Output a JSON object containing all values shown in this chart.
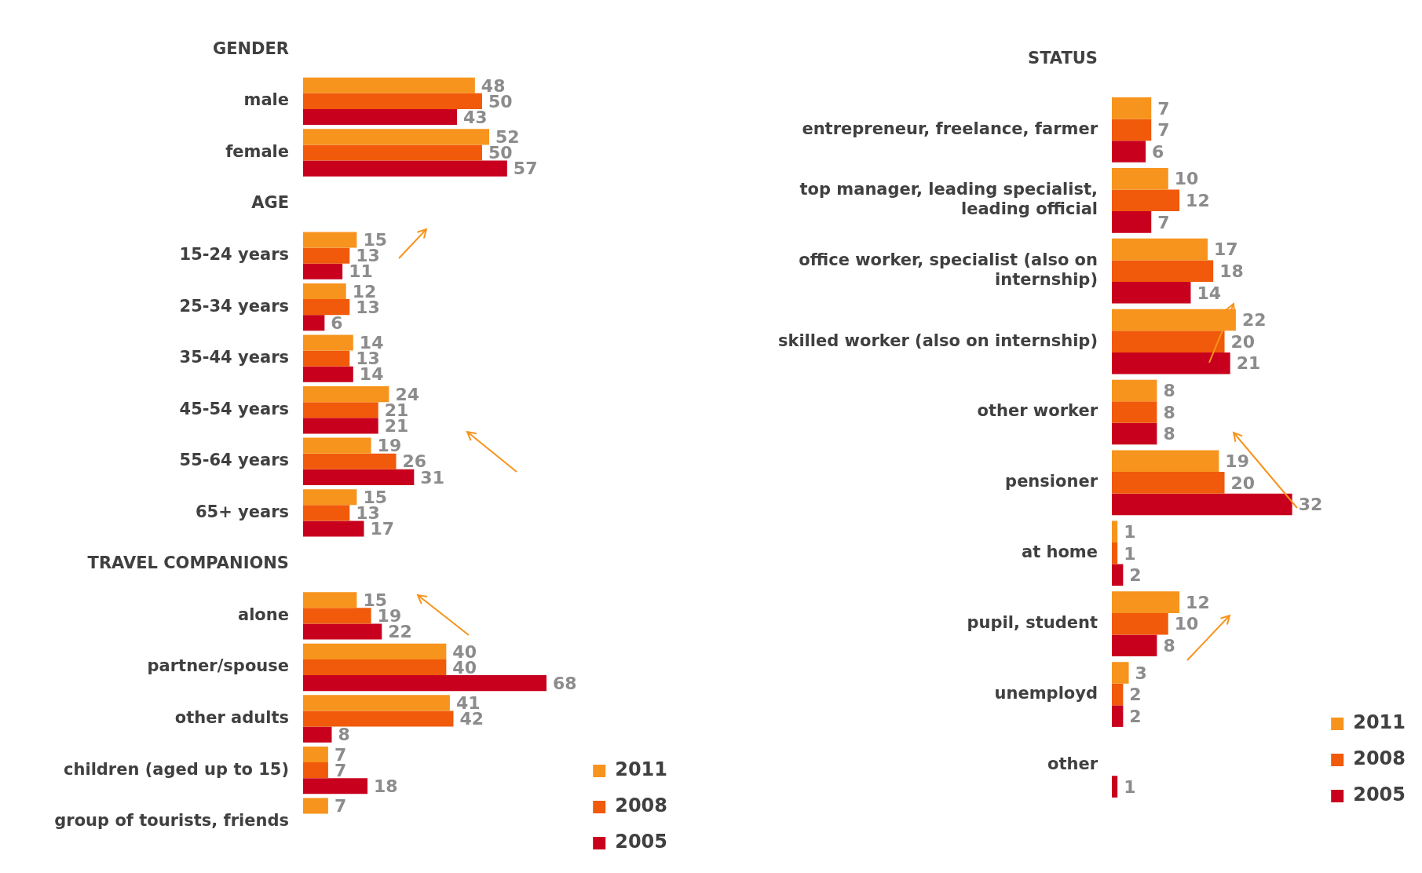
{
  "chart_data": [
    {
      "type": "bar",
      "orientation": "horizontal",
      "categories": [
        "GENDER",
        "male",
        "female",
        "AGE",
        "15-24 years",
        "25-34 years",
        "35-44 years",
        "45-54 years",
        "55-64 years",
        "65+ years",
        "TRAVEL COMPANIONS",
        "alone",
        "partner/spouse",
        "other adults",
        "children (aged up to 15)",
        "group of tourists, friends"
      ],
      "series": [
        {
          "name": "2011",
          "color": "#f7941d",
          "values": [
            null,
            48,
            52,
            null,
            15,
            12,
            14,
            24,
            19,
            15,
            null,
            15,
            40,
            41,
            7,
            7
          ]
        },
        {
          "name": "2008",
          "color": "#f05a0a",
          "values": [
            null,
            50,
            50,
            null,
            13,
            13,
            13,
            21,
            26,
            13,
            null,
            19,
            40,
            42,
            7,
            null
          ]
        },
        {
          "name": "2005",
          "color": "#c8001e",
          "values": [
            null,
            43,
            57,
            null,
            11,
            6,
            14,
            21,
            31,
            17,
            null,
            22,
            68,
            8,
            18,
            null
          ]
        }
      ],
      "data_labels": true,
      "legend": "bottom right",
      "tick_labels": "y"
    },
    {
      "type": "bar",
      "orientation": "horizontal",
      "categories": [
        "STATUS",
        "entrepreneur, freelance, farmer",
        "top manager, leading specialist, leading official",
        "office worker, specialist (also on internship)",
        "skilled worker (also on internship)",
        "other worker",
        "pensioner",
        "at home",
        "pupil, student",
        "unemployd",
        "other"
      ],
      "series": [
        {
          "name": "2011",
          "color": "#f7941d",
          "values": [
            null,
            7,
            10,
            17,
            22,
            8,
            19,
            1,
            12,
            3,
            null
          ]
        },
        {
          "name": "2008",
          "color": "#f05a0a",
          "values": [
            null,
            7,
            12,
            18,
            20,
            8,
            20,
            1,
            10,
            2,
            null
          ]
        },
        {
          "name": "2005",
          "color": "#c8001e",
          "values": [
            null,
            6,
            7,
            14,
            21,
            8,
            32,
            2,
            8,
            2,
            1
          ]
        }
      ],
      "data_labels": true,
      "legend": "bottom right",
      "tick_labels": "y"
    }
  ]
}
